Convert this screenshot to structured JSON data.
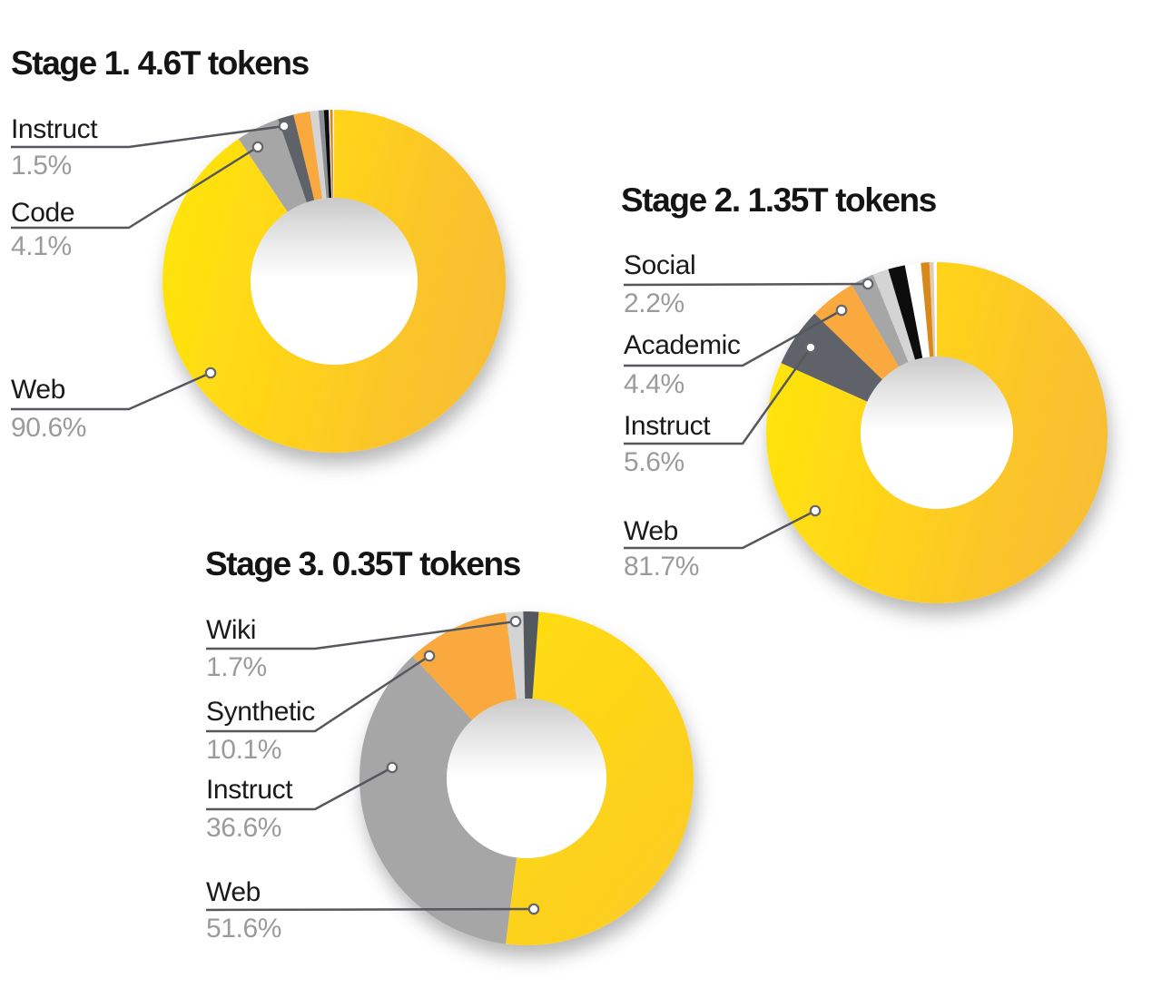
{
  "page": {
    "background": "#FFFFFF"
  },
  "styles": {
    "title_color": "#141414",
    "label_color": "#1A1A1A",
    "percent_color": "#9B9B9B",
    "leader_line_color": "#54575C",
    "leader_dot_fill": "#FFFFFF",
    "leader_dot_stroke": "#63676C",
    "yellow_gradient_stage12": [
      "#FFE40C",
      "#FFD21B",
      "#FAC42B",
      "#F8BE33"
    ],
    "yellow_gradient_stage3": [
      "#FFDC10",
      "#FBCB24"
    ],
    "hole_shadow_top": "#C9C9C9",
    "gray": "#A6A6A6",
    "dark_gray": "#5E6268",
    "orange": "#F9A93C",
    "light_gray": "#D4D4D4",
    "black_slice": "#0B0B0B",
    "dark_orange": "#D8891B",
    "tan": "#E4CBAB"
  },
  "chart_data": [
    {
      "type": "pie",
      "variant": "donut",
      "title": "Stage 1. 4.6T tokens",
      "stage": "Stage 1",
      "total_tokens": "4.6T",
      "units": "percent",
      "legend_position": "left-callouts",
      "slices": [
        {
          "label": "Web",
          "value": 90.6,
          "color": "yellow-gradient"
        },
        {
          "label": "Code",
          "value": 4.1,
          "color": "#A6A6A6"
        },
        {
          "label": "Instruct",
          "value": 1.5,
          "color": "#5E6268"
        },
        {
          "label": null,
          "value": 1.55,
          "color": "#F9A93C"
        },
        {
          "label": null,
          "value": 0.8,
          "color": "#D4D4D4"
        },
        {
          "label": null,
          "value": 0.5,
          "color": "#8D9196"
        },
        {
          "label": null,
          "value": 0.45,
          "color": "#0B0B0B"
        },
        {
          "label": null,
          "value": 0.12,
          "color": "#FFFFFF"
        },
        {
          "label": null,
          "value": 0.25,
          "color": "#D8891B"
        },
        {
          "label": null,
          "value": 0.13,
          "color": "#FFFFFF"
        }
      ],
      "callouts": [
        {
          "name": "Instruct",
          "pct": "1.5%"
        },
        {
          "name": "Code",
          "pct": "4.1%"
        },
        {
          "name": "Web",
          "pct": "90.6%"
        }
      ]
    },
    {
      "type": "pie",
      "variant": "donut",
      "title": "Stage 2. 1.35T tokens",
      "stage": "Stage 2",
      "total_tokens": "1.35T",
      "units": "percent",
      "legend_position": "left-callouts",
      "slices": [
        {
          "label": "Web",
          "value": 81.7,
          "color": "yellow-gradient"
        },
        {
          "label": "Instruct",
          "value": 5.6,
          "color": "#5E6268"
        },
        {
          "label": "Academic",
          "value": 4.4,
          "color": "#F9A93C"
        },
        {
          "label": "Social",
          "value": 2.2,
          "color": "#A6A6A6"
        },
        {
          "label": null,
          "value": 1.5,
          "color": "#D4D4D4"
        },
        {
          "label": null,
          "value": 1.6,
          "color": "#0B0B0B"
        },
        {
          "label": null,
          "value": 1.5,
          "color": "#FFFFFF"
        },
        {
          "label": null,
          "value": 0.8,
          "color": "#D8891B"
        },
        {
          "label": null,
          "value": 0.4,
          "color": "#E4CBAB"
        },
        {
          "label": null,
          "value": 0.3,
          "color": "#FFFFFF"
        }
      ],
      "callouts": [
        {
          "name": "Social",
          "pct": "2.2%"
        },
        {
          "name": "Academic",
          "pct": "4.4%"
        },
        {
          "name": "Instruct",
          "pct": "5.6%"
        },
        {
          "name": "Web",
          "pct": "81.7%"
        }
      ]
    },
    {
      "type": "pie",
      "variant": "donut",
      "title": "Stage 3. 0.35T tokens",
      "stage": "Stage 3",
      "total_tokens": "0.35T",
      "units": "percent",
      "legend_position": "left-callouts",
      "slices": [
        {
          "label": "Web",
          "value": 51.6,
          "color": "yellow-gradient"
        },
        {
          "label": "Instruct",
          "value": 36.6,
          "color": "#A6A6A6"
        },
        {
          "label": "Synthetic",
          "value": 10.1,
          "color": "#F9A93C"
        },
        {
          "label": "Wiki",
          "value": 1.7,
          "color": "#D4D4D4"
        },
        {
          "label": null,
          "value": 1.5,
          "color": "#53585E"
        }
      ],
      "callouts": [
        {
          "name": "Wiki",
          "pct": "1.7%"
        },
        {
          "name": "Synthetic",
          "pct": "10.1%"
        },
        {
          "name": "Instruct",
          "pct": "36.6%"
        },
        {
          "name": "Web",
          "pct": "51.6%"
        }
      ]
    }
  ]
}
